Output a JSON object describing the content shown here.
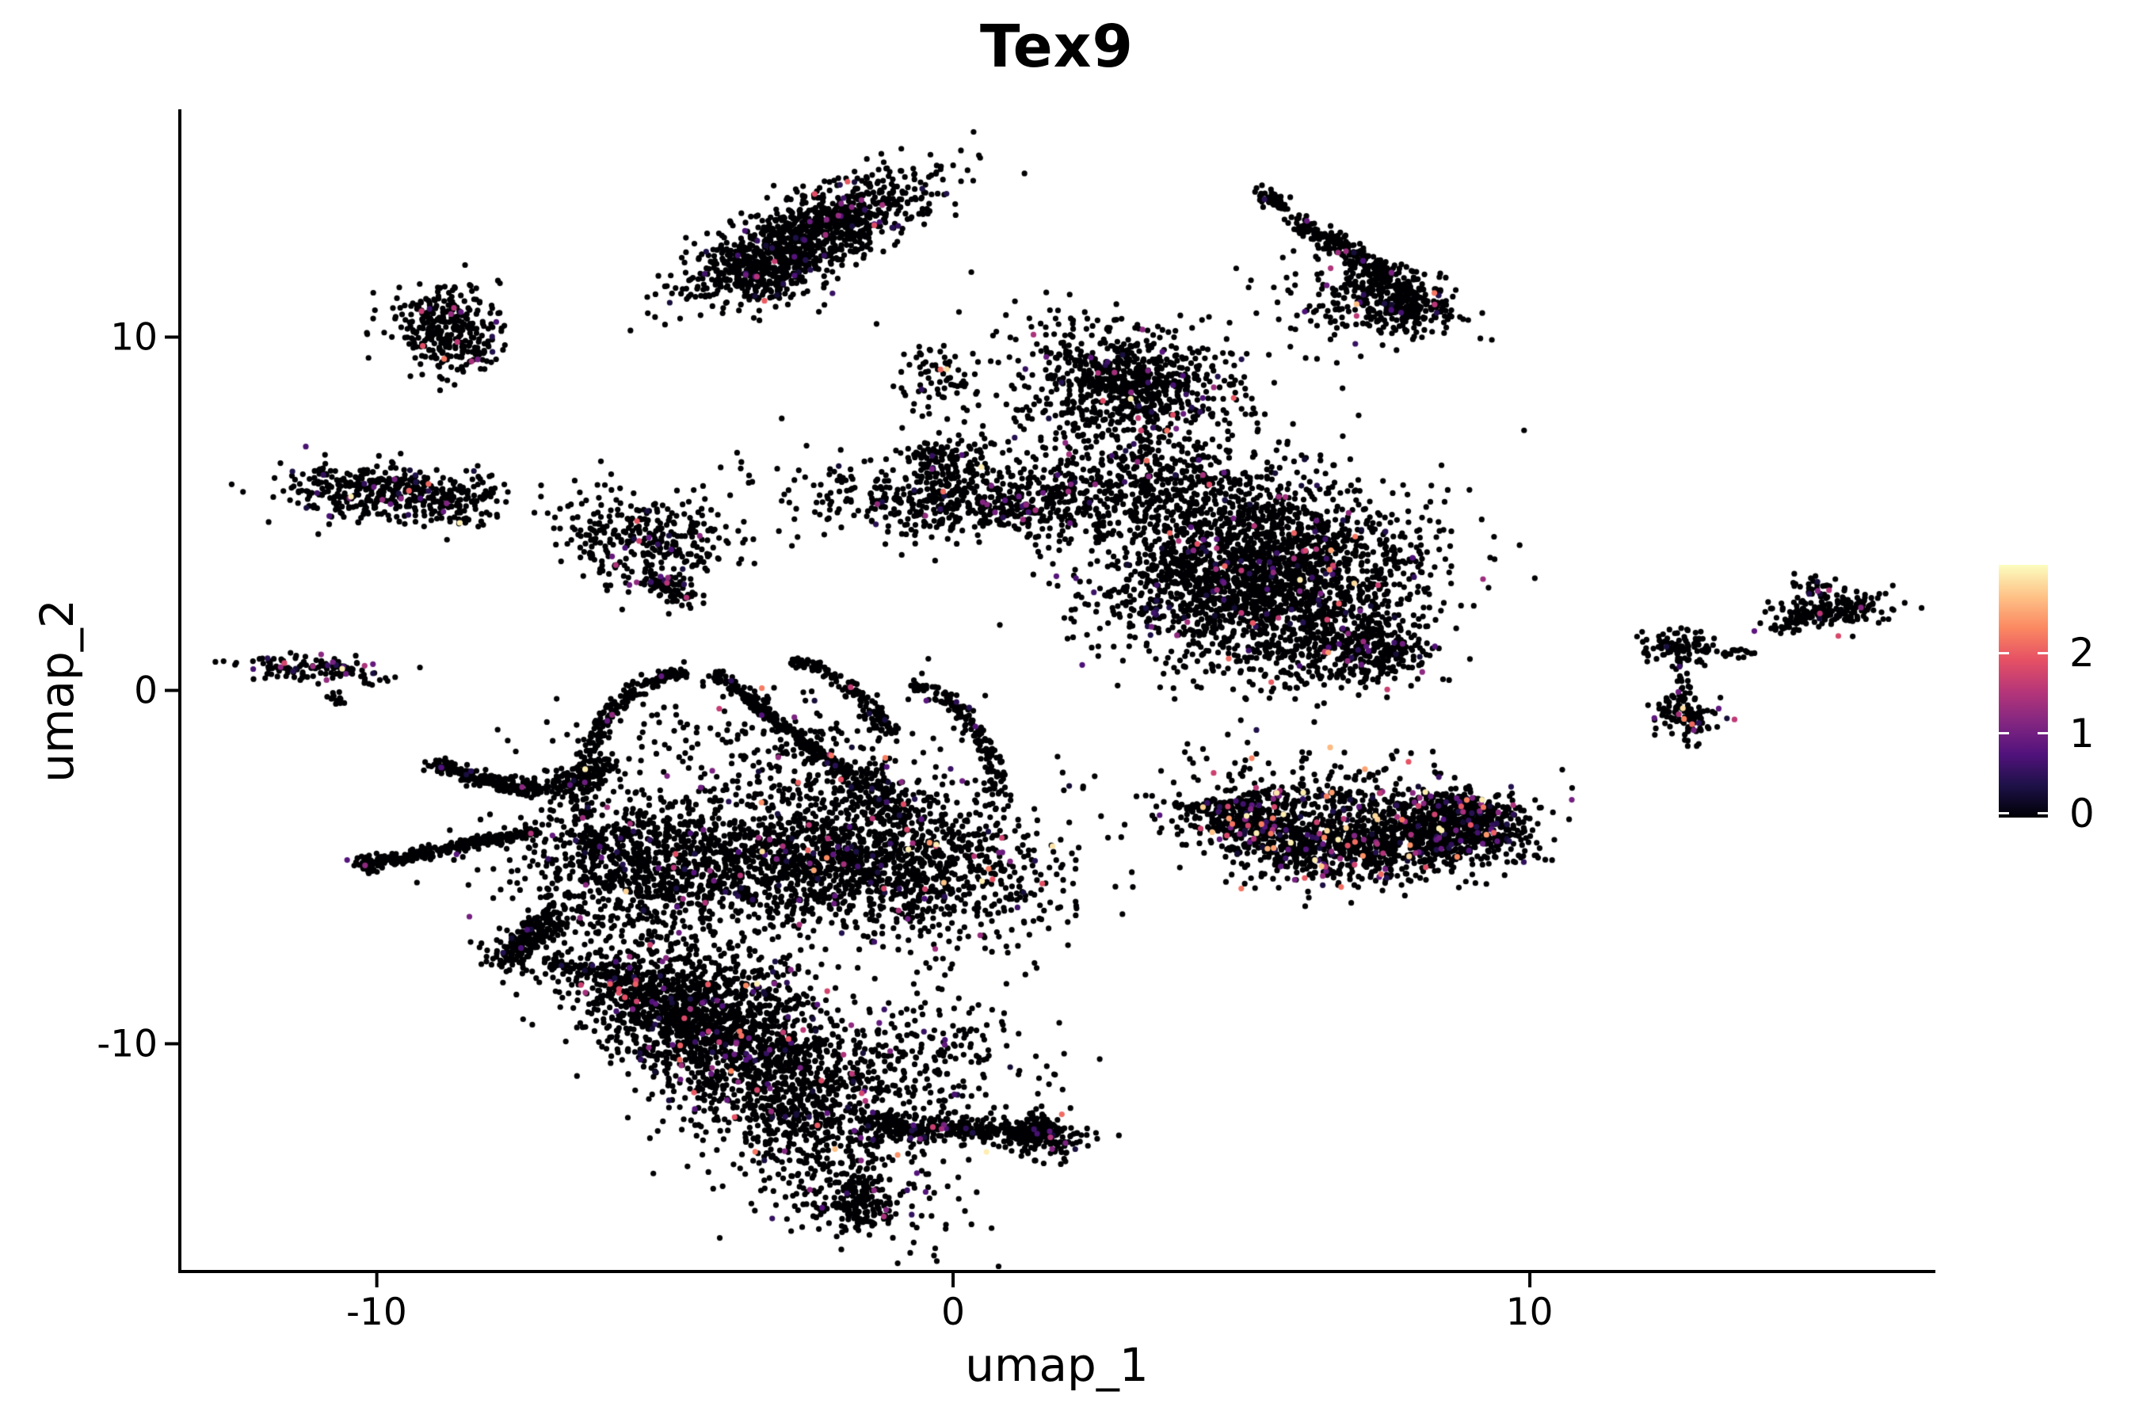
{
  "figure": {
    "background": "#ffffff",
    "axis_color": "#000000",
    "accent_colormap": "magma"
  },
  "chart_data": {
    "type": "scatter",
    "title": "Tex9",
    "xlabel": "umap_1",
    "ylabel": "umap_2",
    "xlim": [
      -13.4,
      17.0
    ],
    "ylim": [
      -16.4,
      16.4
    ],
    "grid": false,
    "legend_position": "right",
    "x_ticks": [
      {
        "label": "-10",
        "value": -10
      },
      {
        "label": "0",
        "value": 0
      },
      {
        "label": "10",
        "value": 10
      }
    ],
    "y_ticks": [
      {
        "label": "10",
        "value": 10
      },
      {
        "label": "0",
        "value": 0
      },
      {
        "label": "-10",
        "value": -10
      }
    ],
    "colorbar": {
      "vmin": 0,
      "vmax": 3.1,
      "ticks": [
        {
          "label": "0",
          "value": 0
        },
        {
          "label": "1",
          "value": 1
        },
        {
          "label": "2",
          "value": 2
        }
      ]
    },
    "colormap_stops": [
      [
        0.0,
        "#000004"
      ],
      [
        0.125,
        "#1D1147"
      ],
      [
        0.25,
        "#51127C"
      ],
      [
        0.375,
        "#822681"
      ],
      [
        0.5,
        "#B63679"
      ],
      [
        0.625,
        "#E65164"
      ],
      [
        0.75,
        "#FB8861"
      ],
      [
        0.875,
        "#FEC287"
      ],
      [
        1.0,
        "#FCFDBF"
      ]
    ],
    "point_radius_px": 3.6,
    "seed": 1337,
    "clusters": [
      {
        "k": "b",
        "x": -2.45,
        "y": 12.9,
        "sx": 1.25,
        "sy": 0.45,
        "r": 38,
        "n": 1050,
        "p": 0.04
      },
      {
        "k": "b",
        "x": -3.4,
        "y": 11.7,
        "sx": 0.5,
        "sy": 0.5,
        "r": 0,
        "n": 170
      },
      {
        "k": "b",
        "x": 1.5,
        "y": 10.4,
        "sx": 1.3,
        "sy": 0.8,
        "r": 0,
        "n": 16
      },
      {
        "k": "l",
        "x1": 5.32,
        "y1": 14.2,
        "x2": 5.75,
        "y2": 13.65,
        "w": 0.1,
        "n": 45
      },
      {
        "k": "l",
        "x1": 5.95,
        "y1": 13.3,
        "x2": 7.9,
        "y2": 11.35,
        "w": 0.13,
        "n": 260
      },
      {
        "k": "b",
        "x": 7.75,
        "y": 11.0,
        "sx": 0.5,
        "sy": 0.38,
        "r": -30,
        "n": 280
      },
      {
        "k": "b",
        "x": 6.8,
        "y": 10.9,
        "sx": 0.8,
        "sy": 0.7,
        "r": 0,
        "n": 120,
        "p": 0.05
      },
      {
        "k": "b",
        "x": -8.9,
        "y": 10.4,
        "sx": 0.48,
        "sy": 0.55,
        "r": 0,
        "n": 260
      },
      {
        "k": "b",
        "x": -8.45,
        "y": 9.55,
        "sx": 0.3,
        "sy": 0.35,
        "r": -20,
        "n": 70
      },
      {
        "k": "b",
        "x": -9.85,
        "y": 5.6,
        "sx": 0.95,
        "sy": 0.42,
        "r": -6,
        "n": 400,
        "p": 0.05
      },
      {
        "k": "b",
        "x": -8.55,
        "y": 5.3,
        "sx": 0.4,
        "sy": 0.3,
        "r": 0,
        "n": 60
      },
      {
        "k": "b",
        "x": -11.0,
        "y": 0.62,
        "sx": 0.72,
        "sy": 0.17,
        "r": -6,
        "n": 130,
        "p": 0.14,
        "m": 0.8
      },
      {
        "k": "l",
        "x1": -10.75,
        "y1": -0.12,
        "x2": -10.55,
        "y2": -0.5,
        "w": 0.07,
        "n": 14
      },
      {
        "k": "b",
        "x": -5.6,
        "y": 4.2,
        "sx": 0.55,
        "sy": 0.75,
        "r": 15,
        "n": 240,
        "p": 0.05
      },
      {
        "k": "l",
        "x1": -5.2,
        "y1": 3.2,
        "x2": -4.55,
        "y2": 2.6,
        "w": 0.2,
        "n": 80
      },
      {
        "k": "b",
        "x": -4.65,
        "y": 4.35,
        "sx": 0.5,
        "sy": 0.55,
        "r": 0,
        "n": 80
      },
      {
        "k": "b",
        "x": -2.6,
        "y": 5.2,
        "sx": 1.1,
        "sy": 0.9,
        "r": 0,
        "n": 25
      },
      {
        "k": "b",
        "x": 3.05,
        "y": 8.75,
        "sx": 0.9,
        "sy": 0.7,
        "r": -20,
        "n": 750,
        "p": 0.04
      },
      {
        "k": "b",
        "x": -0.25,
        "y": 8.8,
        "sx": 0.35,
        "sy": 0.5,
        "r": 0,
        "n": 70
      },
      {
        "k": "b",
        "x": 0.55,
        "y": 5.35,
        "sx": 1.6,
        "sy": 0.5,
        "r": -4,
        "n": 650,
        "p": 0.045
      },
      {
        "k": "b",
        "x": -0.1,
        "y": 6.6,
        "sx": 0.45,
        "sy": 0.35,
        "r": 0,
        "n": 110
      },
      {
        "k": "b",
        "x": 2.4,
        "y": 6.9,
        "sx": 1.05,
        "sy": 1.0,
        "r": 0,
        "n": 220,
        "p": 0.045
      },
      {
        "k": "b",
        "x": 5.3,
        "y": 3.3,
        "sx": 1.35,
        "sy": 1.35,
        "r": -8,
        "n": 2400,
        "p": 0.04
      },
      {
        "k": "b",
        "x": 7.05,
        "y": 1.2,
        "sx": 0.55,
        "sy": 0.5,
        "r": 0,
        "n": 320,
        "p": 0.04
      },
      {
        "k": "b",
        "x": 3.9,
        "y": 5.9,
        "sx": 0.9,
        "sy": 0.5,
        "r": -5,
        "n": 220,
        "p": 0.04
      },
      {
        "k": "a",
        "x": 6.85,
        "y": -2.5,
        "rx": 2.35,
        "ry": 2.1,
        "a0": 195,
        "a1": 345,
        "w": 0.5,
        "n": 1350,
        "p": 0.1,
        "m": 1.0
      },
      {
        "k": "b",
        "x": 6.6,
        "y": -3.3,
        "sx": 1.5,
        "sy": 0.8,
        "r": -10,
        "n": 450,
        "p": 0.1,
        "m": 1.0
      },
      {
        "k": "b",
        "x": 9.0,
        "y": -3.9,
        "sx": 0.5,
        "sy": 0.55,
        "r": 30,
        "n": 280,
        "p": 0.1,
        "m": 1.0
      },
      {
        "k": "b",
        "x": 12.55,
        "y": 1.3,
        "sx": 0.33,
        "sy": 0.25,
        "r": 0,
        "n": 90
      },
      {
        "k": "b",
        "x": 12.7,
        "y": -0.72,
        "sx": 0.28,
        "sy": 0.33,
        "r": 0,
        "n": 110
      },
      {
        "k": "l",
        "x1": 12.6,
        "y1": 0.95,
        "x2": 12.72,
        "y2": -0.3,
        "w": 0.06,
        "n": 22
      },
      {
        "k": "l",
        "x1": 12.95,
        "y1": 1.15,
        "x2": 13.85,
        "y2": 1.05,
        "w": 0.06,
        "n": 26
      },
      {
        "k": "b",
        "x": 15.2,
        "y": 2.25,
        "sx": 0.55,
        "sy": 0.28,
        "r": 12,
        "n": 180
      },
      {
        "k": "b",
        "x": 14.95,
        "y": 2.9,
        "sx": 0.18,
        "sy": 0.22,
        "r": 0,
        "n": 35
      },
      {
        "k": "l",
        "x1": 14.25,
        "y1": 1.7,
        "x2": 14.8,
        "y2": 2.05,
        "w": 0.07,
        "n": 22
      },
      {
        "k": "l",
        "x1": -10.2,
        "y1": -4.95,
        "x2": -7.25,
        "y2": -3.95,
        "w": 0.09,
        "n": 280,
        "p": 0.015
      },
      {
        "k": "b",
        "x": -10.15,
        "y": -4.9,
        "sx": 0.13,
        "sy": 0.12,
        "r": 0,
        "n": 40
      },
      {
        "k": "l",
        "x1": -9.0,
        "y1": -2.1,
        "x2": -7.35,
        "y2": -2.85,
        "w": 0.11,
        "n": 200
      },
      {
        "k": "l",
        "x1": -7.3,
        "y1": -2.8,
        "x2": -5.9,
        "y2": -2.2,
        "w": 0.18,
        "n": 150
      },
      {
        "k": "a",
        "x": -4.45,
        "y": -2.85,
        "rx": 2.0,
        "ry": 3.4,
        "a0": 95,
        "a1": 210,
        "w": 0.1,
        "n": 280,
        "p": 0.02
      },
      {
        "k": "l",
        "x1": -4.1,
        "y1": 0.45,
        "x2": -1.85,
        "y2": -2.35,
        "w": 0.08,
        "n": 300,
        "p": 0.02
      },
      {
        "k": "l",
        "x1": -1.85,
        "y1": -2.35,
        "x2": -0.8,
        "y2": -3.6,
        "w": 0.25,
        "n": 160
      },
      {
        "k": "a",
        "x": -3.2,
        "y": -2.85,
        "rx": 2.3,
        "ry": 3.75,
        "a0": 25,
        "a1": 80,
        "w": 0.1,
        "n": 150,
        "p": 0.02
      },
      {
        "k": "a",
        "x": -1.3,
        "y": -3.1,
        "rx": 2.1,
        "ry": 3.45,
        "a0": -5,
        "a1": 75,
        "w": 0.1,
        "n": 150,
        "p": 0.02
      },
      {
        "k": "b",
        "x": -5.5,
        "y": -4.9,
        "sx": 1.05,
        "sy": 0.85,
        "r": 5,
        "n": 650,
        "p": 0.035
      },
      {
        "k": "b",
        "x": -3.2,
        "y": -4.7,
        "sx": 1.25,
        "sy": 1.0,
        "r": 0,
        "n": 850,
        "p": 0.05,
        "m": 0.8
      },
      {
        "k": "b",
        "x": -0.7,
        "y": -4.9,
        "sx": 1.35,
        "sy": 1.05,
        "r": -5,
        "n": 1050,
        "p": 0.06,
        "m": 0.9
      },
      {
        "k": "b",
        "x": -3.3,
        "y": -1.6,
        "sx": 1.6,
        "sy": 1.0,
        "r": 0,
        "n": 230,
        "p": 0.05
      },
      {
        "k": "l",
        "x1": -6.9,
        "y1": -6.3,
        "x2": -7.6,
        "y2": -7.35,
        "w": 0.2,
        "n": 150
      },
      {
        "k": "b",
        "x": -7.65,
        "y": -7.45,
        "sx": 0.3,
        "sy": 0.25,
        "r": 0,
        "n": 70
      },
      {
        "k": "l",
        "x1": -7.0,
        "y1": -7.7,
        "x2": -5.2,
        "y2": -8.35,
        "w": 0.09,
        "n": 90
      },
      {
        "k": "b",
        "x": -3.6,
        "y": -10.2,
        "sx": 2.3,
        "sy": 0.95,
        "r": -59,
        "n": 2100,
        "p": 0.055,
        "m": 0.85
      },
      {
        "k": "b",
        "x": -4.9,
        "y": -8.9,
        "sx": 0.85,
        "sy": 0.55,
        "r": -30,
        "n": 450,
        "p": 0.06,
        "m": 0.9
      },
      {
        "k": "b",
        "x": -1.65,
        "y": -14.5,
        "sx": 0.4,
        "sy": 0.45,
        "r": 0,
        "n": 160,
        "p": 0.02
      },
      {
        "k": "l",
        "x1": -1.5,
        "y1": -12.3,
        "x2": 1.8,
        "y2": -12.55,
        "w": 0.2,
        "n": 380,
        "p": 0.04,
        "m": 0.8
      },
      {
        "k": "b",
        "x": 1.6,
        "y": -12.6,
        "sx": 0.4,
        "sy": 0.3,
        "r": 0,
        "n": 130
      },
      {
        "k": "b",
        "x": -0.6,
        "y": -10.6,
        "sx": 1.15,
        "sy": 1.0,
        "r": 0,
        "n": 260,
        "p": 0.05
      }
    ],
    "accent_points": [
      [
        -1.83,
        14.4,
        2.0
      ],
      [
        -2.4,
        14.05,
        1.9
      ],
      [
        8.35,
        11.25,
        2.2
      ],
      [
        6.55,
        11.95,
        1.5
      ],
      [
        7.0,
        10.6,
        1.6
      ],
      [
        -9.2,
        9.75,
        1.9
      ],
      [
        -9.1,
        5.85,
        2.1
      ],
      [
        -11.6,
        0.78,
        1.8
      ],
      [
        -5.85,
        3.55,
        1.5
      ],
      [
        2.6,
        8.2,
        1.9
      ],
      [
        2.8,
        9.0,
        1.4
      ],
      [
        5.0,
        2.2,
        1.6
      ],
      [
        6.3,
        4.0,
        1.5
      ],
      [
        9.2,
        -3.3,
        2.2
      ],
      [
        5.0,
        -5.6,
        2.2
      ],
      [
        4.75,
        -4.1,
        1.8
      ],
      [
        8.2,
        -5.0,
        1.9
      ],
      [
        6.1,
        -5.3,
        2.0
      ],
      [
        7.4,
        -2.9,
        1.6
      ],
      [
        5.6,
        -2.9,
        1.6
      ],
      [
        12.66,
        -0.5,
        2.9
      ],
      [
        12.68,
        -0.8,
        2.3
      ],
      [
        12.82,
        -0.95,
        2.1
      ],
      [
        12.85,
        -1.12,
        1.1
      ],
      [
        15.0,
        2.82,
        1.2
      ],
      [
        15.75,
        2.35,
        1.2
      ],
      [
        -6.0,
        -3.3,
        1.4
      ],
      [
        -2.5,
        -3.8,
        1.6
      ],
      [
        -1.2,
        -5.6,
        1.8
      ],
      [
        -4.3,
        -6.0,
        1.5
      ],
      [
        -0.3,
        -4.4,
        1.7
      ],
      [
        -5.95,
        -8.3,
        2.0
      ],
      [
        -5.8,
        -8.55,
        1.9
      ],
      [
        -5.5,
        -8.2,
        1.7
      ],
      [
        -2.6,
        -9.6,
        1.6
      ],
      [
        -3.4,
        -11.3,
        1.8
      ],
      [
        -1.9,
        -10.3,
        1.5
      ],
      [
        -0.2,
        -12.4,
        1.4
      ],
      [
        1.95,
        -12.8,
        1.1
      ]
    ]
  }
}
